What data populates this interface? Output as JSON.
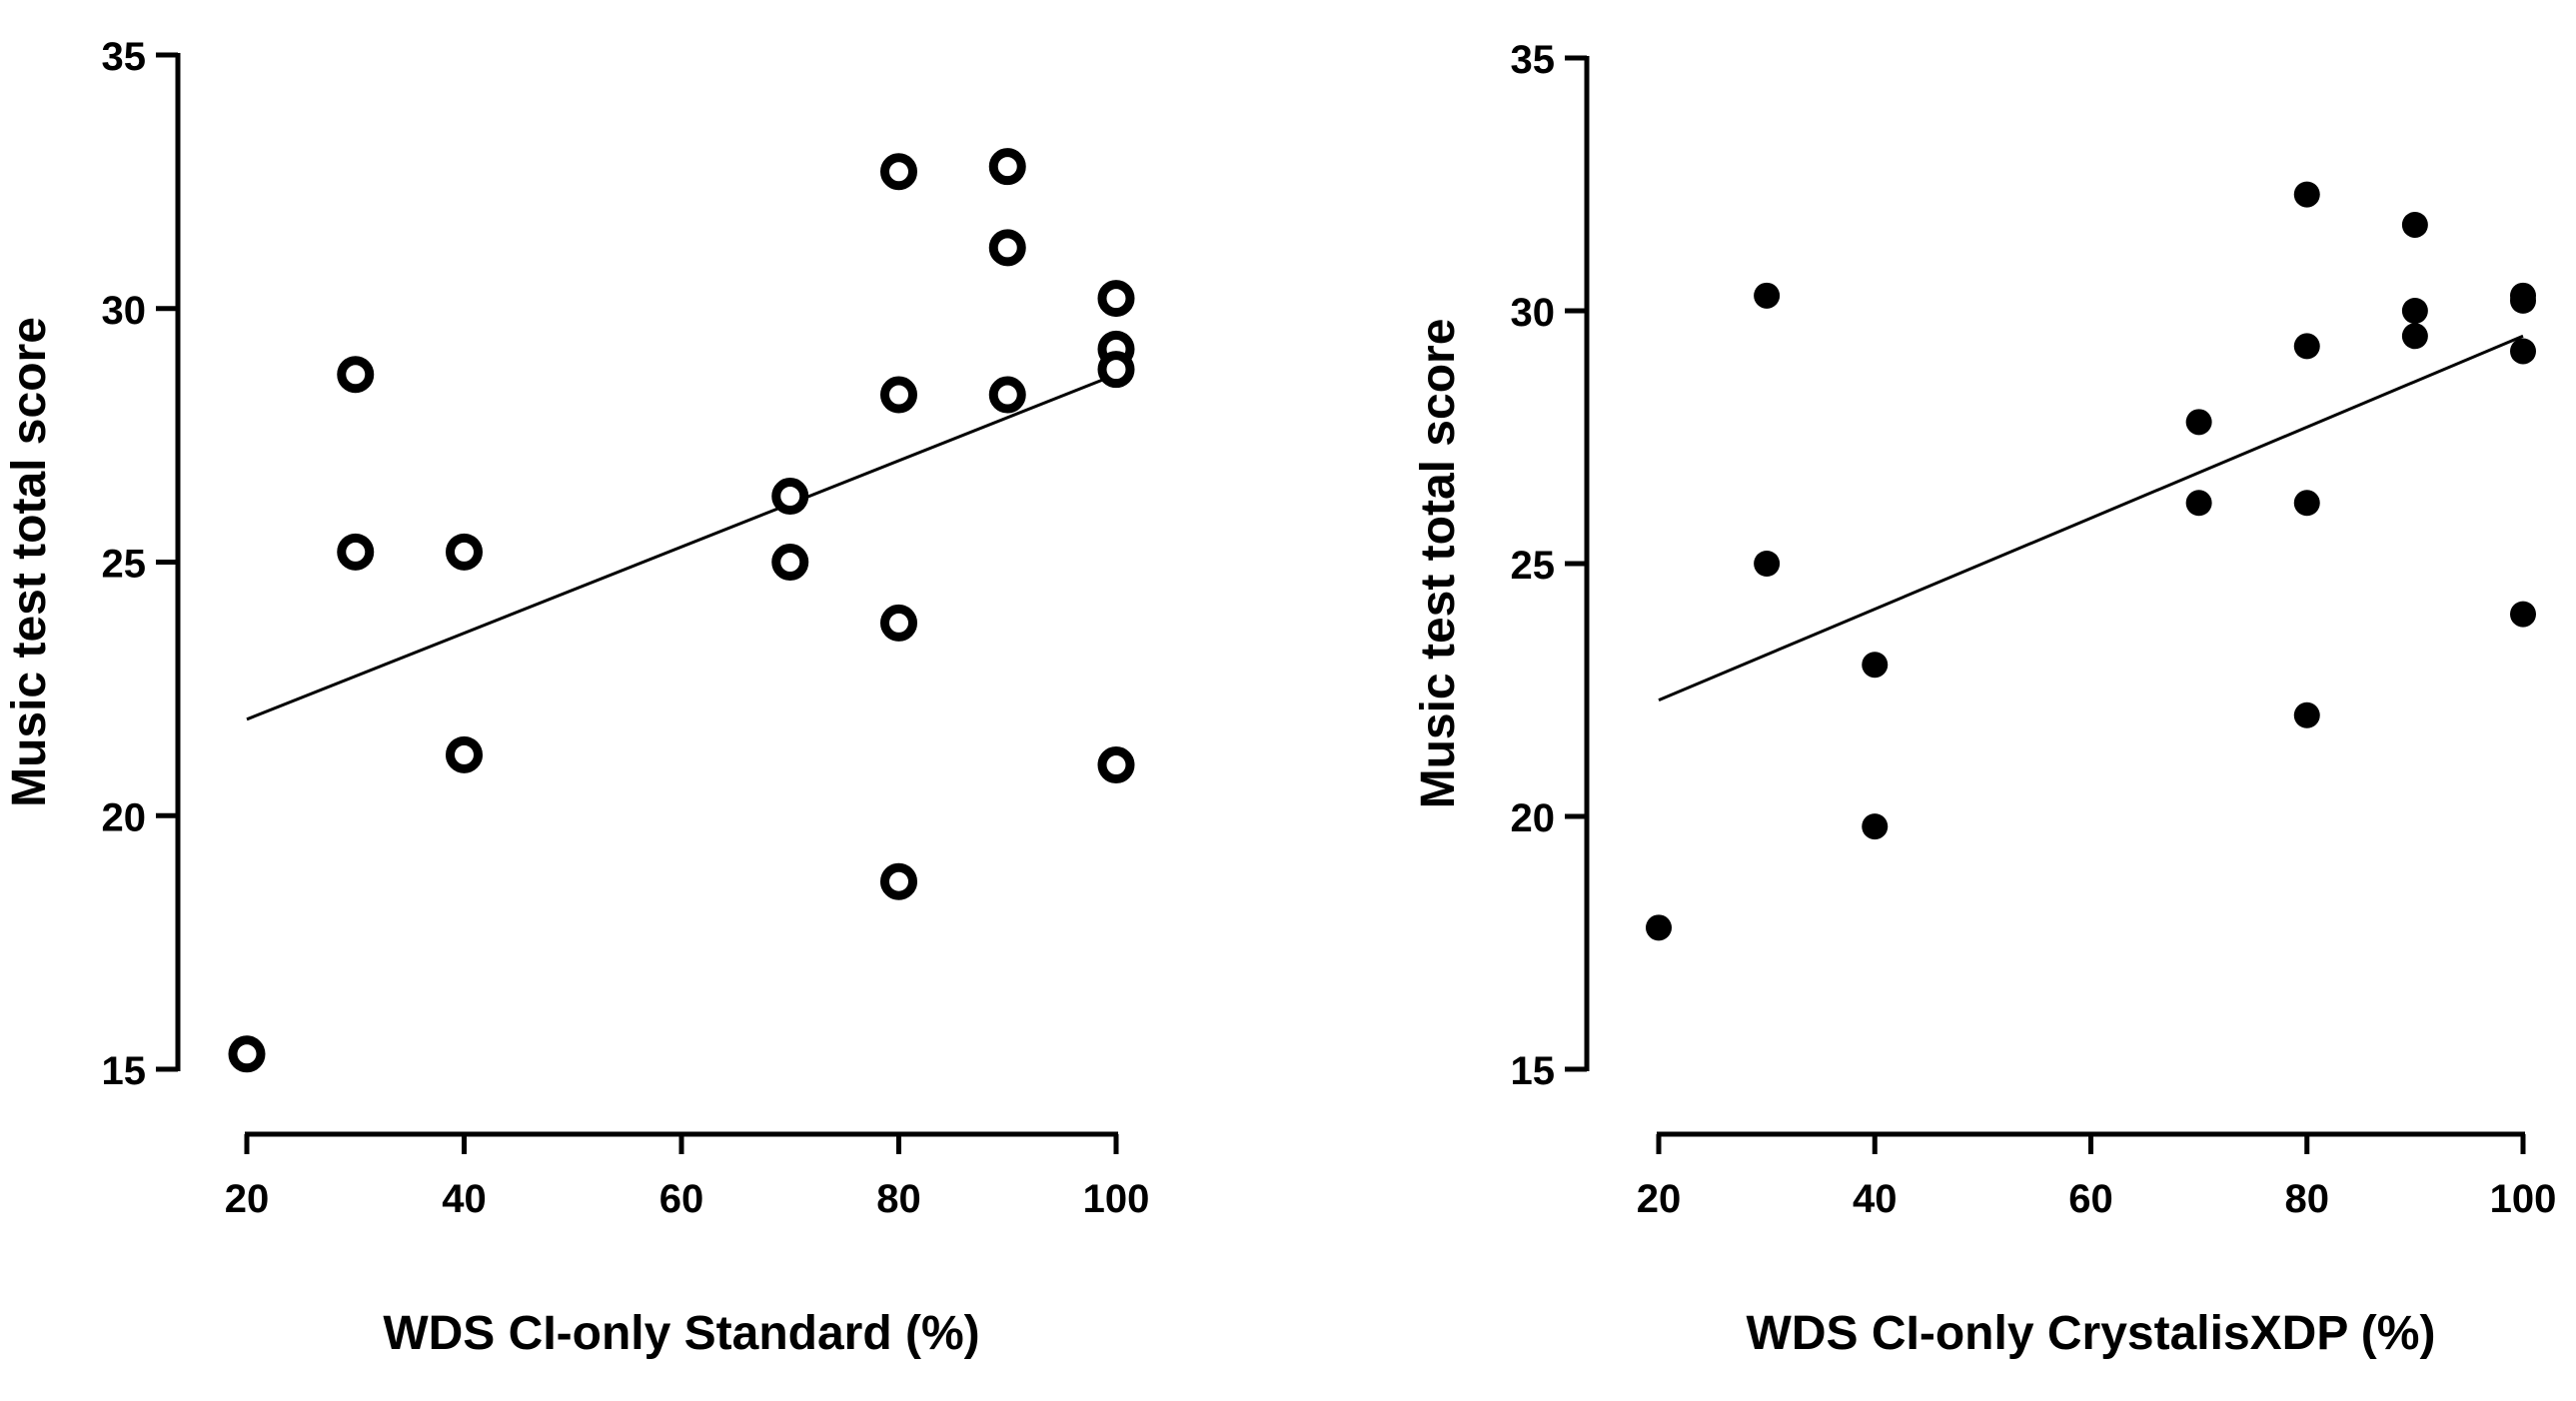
{
  "chart_data": [
    {
      "type": "scatter",
      "marker": "open-circle",
      "xlabel": "WDS CI-only Standard (%)",
      "ylabel": "Music test total score",
      "xlim": [
        20,
        100
      ],
      "ylim": [
        15,
        35
      ],
      "xticks": [
        20,
        40,
        60,
        80,
        100
      ],
      "yticks": [
        15,
        20,
        25,
        30,
        35
      ],
      "points": [
        {
          "x": 20,
          "y": 15.3
        },
        {
          "x": 30,
          "y": 28.7
        },
        {
          "x": 30,
          "y": 25.2
        },
        {
          "x": 40,
          "y": 25.2
        },
        {
          "x": 40,
          "y": 21.2
        },
        {
          "x": 70,
          "y": 26.3
        },
        {
          "x": 70,
          "y": 25.0
        },
        {
          "x": 80,
          "y": 32.7
        },
        {
          "x": 80,
          "y": 28.3
        },
        {
          "x": 80,
          "y": 23.8
        },
        {
          "x": 80,
          "y": 18.7
        },
        {
          "x": 90,
          "y": 32.8
        },
        {
          "x": 90,
          "y": 31.2
        },
        {
          "x": 90,
          "y": 28.3
        },
        {
          "x": 100,
          "y": 30.2
        },
        {
          "x": 100,
          "y": 29.2
        },
        {
          "x": 100,
          "y": 28.8
        },
        {
          "x": 100,
          "y": 21.0
        }
      ],
      "fit_line": {
        "x": [
          20,
          100
        ],
        "y": [
          21.9,
          28.7
        ]
      }
    },
    {
      "type": "scatter",
      "marker": "filled-circle",
      "xlabel": "WDS CI-only CrystalisXDP (%)",
      "ylabel": "Music test total score",
      "xlim": [
        20,
        100
      ],
      "ylim": [
        15,
        35
      ],
      "xticks": [
        20,
        40,
        60,
        80,
        100
      ],
      "yticks": [
        15,
        20,
        25,
        30,
        35
      ],
      "points": [
        {
          "x": 20,
          "y": 17.8
        },
        {
          "x": 30,
          "y": 30.3
        },
        {
          "x": 30,
          "y": 25.0
        },
        {
          "x": 40,
          "y": 23.0
        },
        {
          "x": 40,
          "y": 19.8
        },
        {
          "x": 70,
          "y": 27.8
        },
        {
          "x": 70,
          "y": 26.2
        },
        {
          "x": 80,
          "y": 32.3
        },
        {
          "x": 80,
          "y": 29.3
        },
        {
          "x": 80,
          "y": 26.2
        },
        {
          "x": 80,
          "y": 22.0
        },
        {
          "x": 90,
          "y": 31.7
        },
        {
          "x": 90,
          "y": 30.0
        },
        {
          "x": 90,
          "y": 29.5
        },
        {
          "x": 100,
          "y": 30.3
        },
        {
          "x": 100,
          "y": 30.2
        },
        {
          "x": 100,
          "y": 29.2
        },
        {
          "x": 100,
          "y": 24.0
        }
      ],
      "fit_line": {
        "x": [
          20,
          100
        ],
        "y": [
          22.3,
          29.5
        ]
      }
    }
  ]
}
